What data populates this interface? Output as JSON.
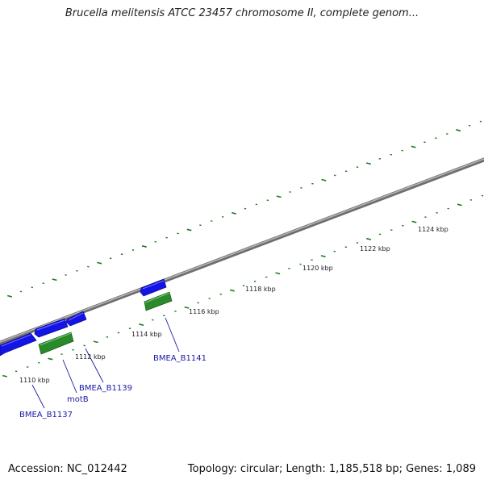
{
  "title": "Brucella melitensis ATCC 23457 chromosome II, complete genom...",
  "footer": {
    "accession": "Accession: NC_012442",
    "summary": "Topology: circular; Length: 1,185,518 bp; Genes: 1,089"
  },
  "colors": {
    "backbone": "#8a8a8a",
    "tick": "#1f7a1f",
    "forward_gene": "#1414e6",
    "reverse_gene": "#2a8a2a",
    "label": "#1a1aa6"
  },
  "kbp_labels": [
    "1110 kbp",
    "1112 kbp",
    "1114 kbp",
    "1116 kbp",
    "1118 kbp",
    "1120 kbp",
    "1122 kbp",
    "1124 kbp"
  ],
  "gene_labels": [
    {
      "text": "BMEA_B1137"
    },
    {
      "text": "motB"
    },
    {
      "text": "BMEA_B1139"
    },
    {
      "text": "BMEA_B1141"
    }
  ]
}
